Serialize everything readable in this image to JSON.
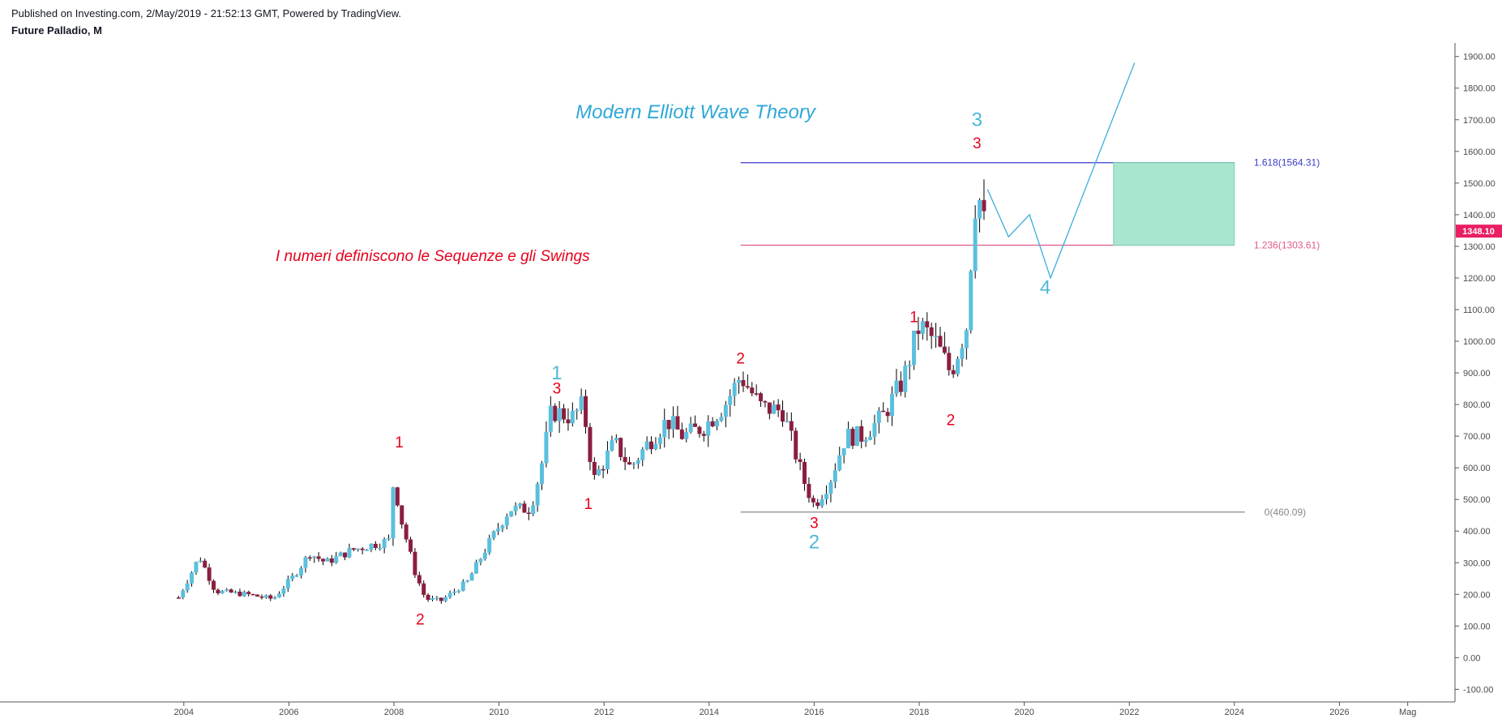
{
  "header": {
    "published": "Published on Investing.com, 2/May/2019 - 21:52:13 GMT, Powered by TradingView.",
    "symbol": "Future Palladio,  M"
  },
  "annotations": {
    "title": "Modern Elliott Wave Theory",
    "subtitle": "I numeri definiscono le Sequenze e gli Swings"
  },
  "colors": {
    "up": "#5bc0de",
    "down": "#8b1e3f",
    "wick": "#000000",
    "red_label": "#e8001c",
    "blue_label": "#4fb8d8",
    "fib_1618": "#3c3cc8",
    "fib_1236": "#e05a8a",
    "fib_0": "#888888",
    "target_box": "#a8e6cf",
    "projection": "#3aaee0",
    "price_badge": "#e91e63"
  },
  "chart_data": {
    "type": "candlestick",
    "timeframe": "M",
    "y_axis": {
      "min": -140,
      "max": 1930,
      "ticks": [
        "1900.00",
        "1800.00",
        "1700.00",
        "1600.00",
        "1500.00",
        "1400.00",
        "1300.00",
        "1200.00",
        "1100.00",
        "1000.00",
        "900.00",
        "800.00",
        "700.00",
        "600.00",
        "500.00",
        "400.00",
        "300.00",
        "200.00",
        "100.00",
        "0.00",
        "-100.00"
      ],
      "tick_values": [
        1900,
        1800,
        1700,
        1600,
        1500,
        1400,
        1300,
        1200,
        1100,
        1000,
        900,
        800,
        700,
        600,
        500,
        400,
        300,
        200,
        100,
        0,
        -100
      ]
    },
    "x_axis": {
      "min": 2000.5,
      "max": 2028.2,
      "ticks": [
        "2004",
        "2006",
        "2008",
        "2010",
        "2012",
        "2014",
        "2016",
        "2018",
        "2020",
        "2022",
        "2024",
        "2026",
        "Mag"
      ],
      "tick_values": [
        2004,
        2006,
        2008,
        2010,
        2012,
        2014,
        2016,
        2018,
        2020,
        2022,
        2024,
        2026,
        2027.3
      ]
    },
    "last_price": "1348.10",
    "last_price_value": 1348.1,
    "price_path": [
      [
        2003.9,
        190
      ],
      [
        2004.3,
        320
      ],
      [
        2004.6,
        210
      ],
      [
        2005.2,
        200
      ],
      [
        2005.7,
        185
      ],
      [
        2006.1,
        260
      ],
      [
        2006.4,
        330
      ],
      [
        2006.7,
        300
      ],
      [
        2007.2,
        340
      ],
      [
        2007.9,
        370
      ],
      [
        2008.0,
        580
      ],
      [
        2008.1,
        460
      ],
      [
        2008.4,
        270
      ],
      [
        2008.6,
        185
      ],
      [
        2008.9,
        180
      ],
      [
        2009.4,
        240
      ],
      [
        2009.8,
        360
      ],
      [
        2010.2,
        470
      ],
      [
        2010.6,
        470
      ],
      [
        2010.8,
        600
      ],
      [
        2011.0,
        780
      ],
      [
        2011.4,
        760
      ],
      [
        2011.6,
        800
      ],
      [
        2011.8,
        560
      ],
      [
        2012.2,
        680
      ],
      [
        2012.5,
        600
      ],
      [
        2012.8,
        670
      ],
      [
        2013.2,
        750
      ],
      [
        2013.5,
        700
      ],
      [
        2013.9,
        730
      ],
      [
        2014.3,
        800
      ],
      [
        2014.6,
        890
      ],
      [
        2015.0,
        790
      ],
      [
        2015.4,
        780
      ],
      [
        2015.8,
        560
      ],
      [
        2016.0,
        480
      ],
      [
        2016.3,
        560
      ],
      [
        2016.6,
        700
      ],
      [
        2016.9,
        700
      ],
      [
        2017.3,
        760
      ],
      [
        2017.7,
        880
      ],
      [
        2018.0,
        1050
      ],
      [
        2018.3,
        1000
      ],
      [
        2018.6,
        900
      ],
      [
        2018.9,
        1050
      ],
      [
        2019.0,
        1300
      ],
      [
        2019.1,
        1510
      ],
      [
        2019.2,
        1380
      ],
      [
        2019.3,
        1348
      ]
    ],
    "projection_path": [
      [
        2019.3,
        1480
      ],
      [
        2019.7,
        1330
      ],
      [
        2020.1,
        1400
      ],
      [
        2020.5,
        1200
      ],
      [
        2022.1,
        1880
      ]
    ],
    "fib_levels": [
      {
        "label": "1.618(1564.31)",
        "value": 1564.31,
        "color": "#3c3cc8",
        "x_start": 2014.6,
        "x_end": 2024.0
      },
      {
        "label": "1.236(1303.61)",
        "value": 1303.61,
        "color": "#e05a8a",
        "x_start": 2014.6,
        "x_end": 2024.0
      },
      {
        "label": "0(460.09)",
        "value": 460.09,
        "color": "#888888",
        "x_start": 2014.6,
        "x_end": 2024.2
      }
    ],
    "target_zone": {
      "x_start": 2021.7,
      "x_end": 2024.0,
      "y_low": 1303.61,
      "y_high": 1564.31
    },
    "wave_labels": [
      {
        "text": "1",
        "x": 2008.1,
        "y": 665,
        "color": "red"
      },
      {
        "text": "2",
        "x": 2008.5,
        "y": 105,
        "color": "red"
      },
      {
        "text": "3",
        "x": 2011.1,
        "y": 835,
        "color": "red"
      },
      {
        "text": "1",
        "x": 2011.1,
        "y": 880,
        "color": "blue"
      },
      {
        "text": "1",
        "x": 2011.7,
        "y": 470,
        "color": "red"
      },
      {
        "text": "2",
        "x": 2014.6,
        "y": 930,
        "color": "red"
      },
      {
        "text": "3",
        "x": 2016.0,
        "y": 410,
        "color": "red"
      },
      {
        "text": "2",
        "x": 2016.0,
        "y": 345,
        "color": "blue"
      },
      {
        "text": "1",
        "x": 2017.9,
        "y": 1060,
        "color": "red"
      },
      {
        "text": "2",
        "x": 2018.6,
        "y": 735,
        "color": "red"
      },
      {
        "text": "3",
        "x": 2019.1,
        "y": 1610,
        "color": "red"
      },
      {
        "text": "3",
        "x": 2019.1,
        "y": 1680,
        "color": "blue"
      },
      {
        "text": "4",
        "x": 2020.4,
        "y": 1150,
        "color": "blue"
      }
    ]
  }
}
